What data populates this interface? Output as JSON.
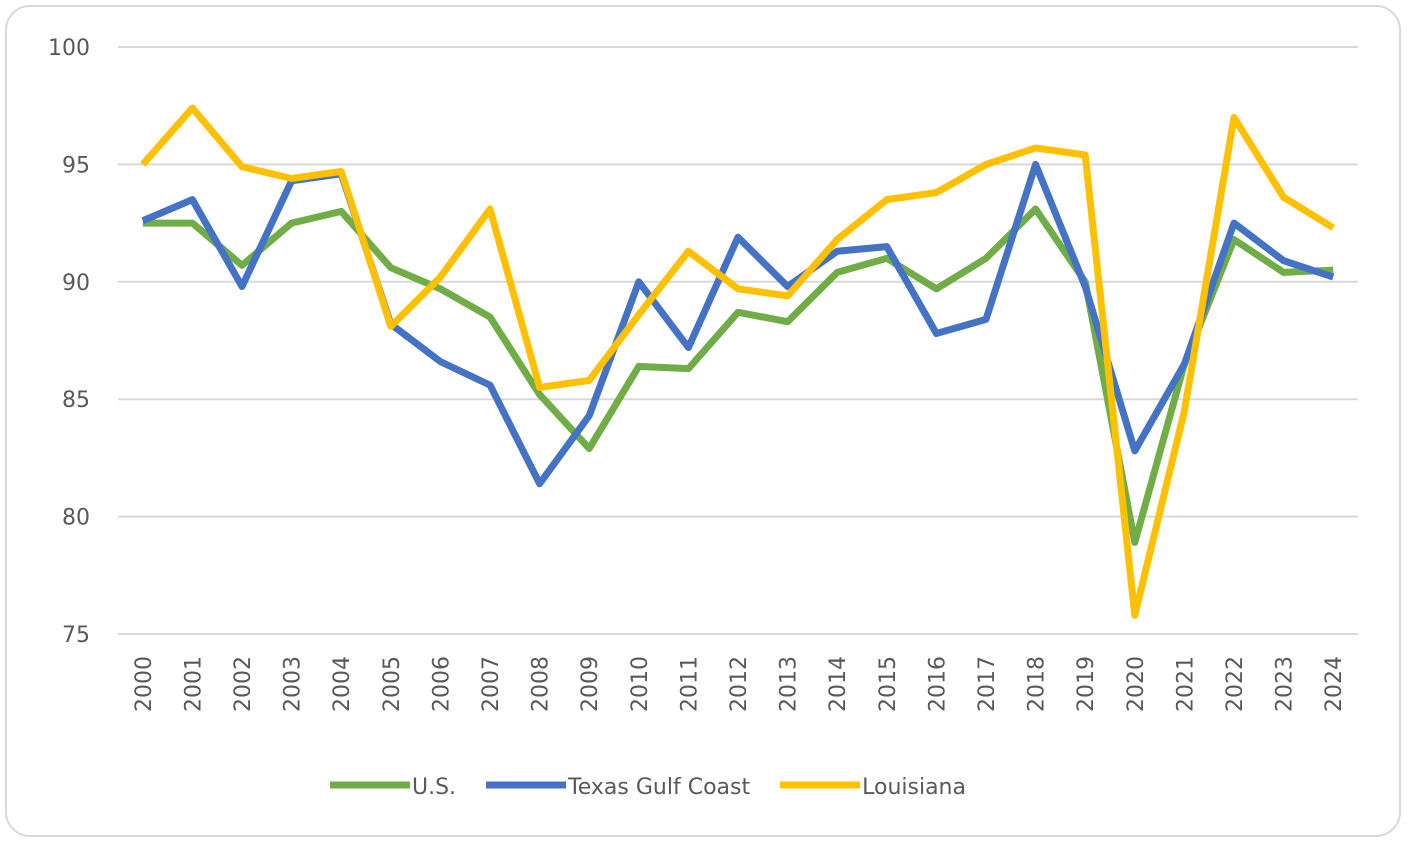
{
  "chart_data": {
    "type": "line",
    "categories": [
      "2000",
      "2001",
      "2002",
      "2003",
      "2004",
      "2005",
      "2006",
      "2007",
      "2008",
      "2009",
      "2010",
      "2011",
      "2012",
      "2013",
      "2014",
      "2015",
      "2016",
      "2017",
      "2018",
      "2019",
      "2020",
      "2021",
      "2022",
      "2023",
      "2024"
    ],
    "series": [
      {
        "name": "U.S.",
        "color": "#70ad47",
        "values": [
          92.5,
          92.5,
          90.7,
          92.5,
          93.0,
          90.6,
          89.7,
          88.5,
          85.2,
          82.9,
          86.4,
          86.3,
          88.7,
          88.3,
          90.4,
          91.0,
          89.7,
          91.0,
          93.1,
          90.0,
          78.9,
          86.5,
          91.8,
          90.4,
          90.5
        ]
      },
      {
        "name": "Texas Gulf Coast",
        "color": "#4472c4",
        "values": [
          92.6,
          93.5,
          89.8,
          94.3,
          94.6,
          88.2,
          86.6,
          85.6,
          81.4,
          84.3,
          90.0,
          87.2,
          91.9,
          89.8,
          91.3,
          91.5,
          87.8,
          88.4,
          95.0,
          89.8,
          82.8,
          86.5,
          92.5,
          90.9,
          90.2
        ]
      },
      {
        "name": "Louisiana",
        "color": "#ffc000",
        "values": [
          95.0,
          97.4,
          94.9,
          94.4,
          94.7,
          88.1,
          90.2,
          93.1,
          85.5,
          85.8,
          88.6,
          91.3,
          89.7,
          89.4,
          91.8,
          93.5,
          93.8,
          95.0,
          95.7,
          95.4,
          75.8,
          84.5,
          97.0,
          93.6,
          92.3
        ]
      }
    ],
    "ylim": [
      75,
      100
    ],
    "yticks": [
      75,
      80,
      85,
      90,
      95,
      100
    ],
    "grid": true,
    "legend": "bottom"
  }
}
